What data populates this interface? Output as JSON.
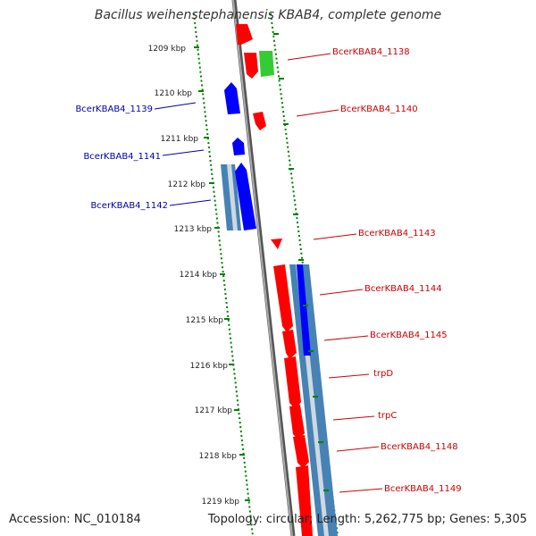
{
  "title": "Bacillus weihenstephanensis KBAB4, complete genome",
  "footer": {
    "accession": "Accession: NC_010184",
    "topology": "Topology: circular; Length: 5,262,775 bp; Genes: 5,305"
  },
  "colors": {
    "forward_gene": "#ff0000",
    "reverse_gene": "#0000ff",
    "highlight_gene": "#33cc33",
    "conserved_region": "#4682b4",
    "tick_marks": "#008000",
    "backbone": "#888888"
  },
  "axis_ticks": [
    "1209 kbp",
    "1210 kbp",
    "1211 kbp",
    "1212 kbp",
    "1213 kbp",
    "1214 kbp",
    "1215 kbp",
    "1216 kbp",
    "1217 kbp",
    "1218 kbp",
    "1219 kbp"
  ],
  "gene_labels": [
    {
      "text": "BcerKBAB4_1138",
      "strand": "forward"
    },
    {
      "text": "BcerKBAB4_1139",
      "strand": "reverse"
    },
    {
      "text": "BcerKBAB4_1140",
      "strand": "forward"
    },
    {
      "text": "BcerKBAB4_1141",
      "strand": "reverse"
    },
    {
      "text": "BcerKBAB4_1142",
      "strand": "reverse"
    },
    {
      "text": "BcerKBAB4_1143",
      "strand": "forward"
    },
    {
      "text": "BcerKBAB4_1144",
      "strand": "forward"
    },
    {
      "text": "BcerKBAB4_1145",
      "strand": "forward"
    },
    {
      "text": "trpD",
      "strand": "forward"
    },
    {
      "text": "trpC",
      "strand": "forward"
    },
    {
      "text": "BcerKBAB4_1148",
      "strand": "forward"
    },
    {
      "text": "BcerKBAB4_1149",
      "strand": "forward"
    }
  ]
}
